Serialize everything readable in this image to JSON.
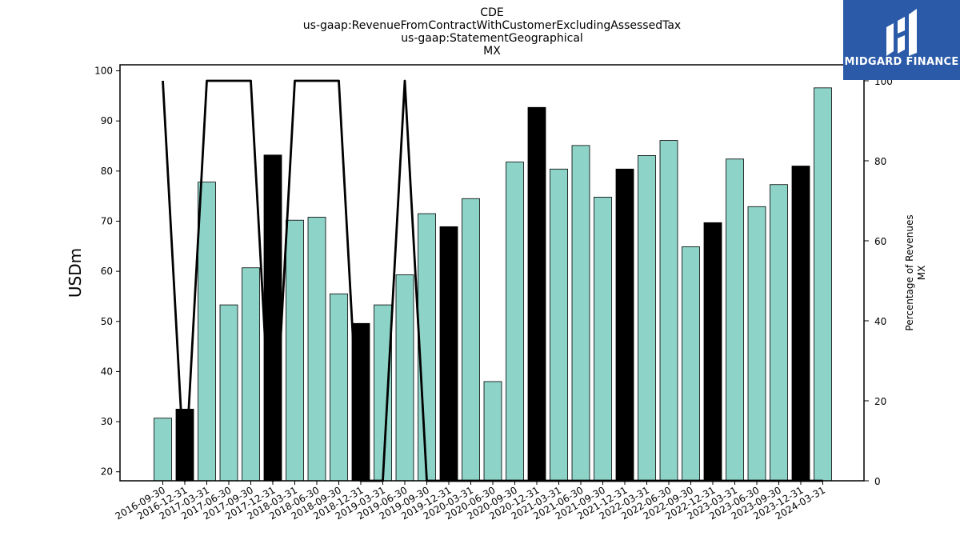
{
  "chart_data": {
    "type": "bar",
    "title_lines": [
      "CDE",
      "us-gaap:RevenueFromContractWithCustomerExcludingAssessedTax",
      "us-gaap:StatementGeographical",
      "MX"
    ],
    "ylabel": "USDm",
    "y2label_lines": [
      "Percentage of Revenues",
      "MX"
    ],
    "ylim": [
      18.2,
      101.2
    ],
    "y2lim": [
      0,
      104
    ],
    "yticks": [
      20,
      30,
      40,
      50,
      60,
      70,
      80,
      90,
      100
    ],
    "y2ticks": [
      0,
      20,
      40,
      60,
      80,
      100
    ],
    "categories": [
      "2016-09-30",
      "2016-12-31",
      "2017-03-31",
      "2017-06-30",
      "2017-09-30",
      "2017-12-31",
      "2018-03-31",
      "2018-06-30",
      "2018-09-30",
      "2018-12-31",
      "2019-03-31",
      "2019-06-30",
      "2019-09-30",
      "2019-12-31",
      "2020-03-31",
      "2020-06-30",
      "2020-09-30",
      "2020-12-31",
      "2021-03-31",
      "2021-06-30",
      "2021-09-30",
      "2021-12-31",
      "2022-03-31",
      "2022-06-30",
      "2022-09-30",
      "2022-12-31",
      "2023-03-31",
      "2023-06-30",
      "2023-09-30",
      "2023-12-31",
      "2024-03-31"
    ],
    "series": [
      {
        "type": "bar",
        "values": [
          30.7,
          32.5,
          77.8,
          53.3,
          60.7,
          83.2,
          70.2,
          70.8,
          55.5,
          49.6,
          53.3,
          59.3,
          71.5,
          68.9,
          74.5,
          38.0,
          81.8,
          92.7,
          80.4,
          85.1,
          74.8,
          80.4,
          83.1,
          86.1,
          64.9,
          69.7,
          82.4,
          72.9,
          77.3,
          81.0,
          96.6
        ],
        "colors_by_index": [
          "#8dd3c7",
          "#000000",
          "#8dd3c7",
          "#8dd3c7",
          "#8dd3c7",
          "#000000",
          "#8dd3c7",
          "#8dd3c7",
          "#8dd3c7",
          "#000000",
          "#8dd3c7",
          "#8dd3c7",
          "#8dd3c7",
          "#000000",
          "#8dd3c7",
          "#8dd3c7",
          "#8dd3c7",
          "#000000",
          "#8dd3c7",
          "#8dd3c7",
          "#8dd3c7",
          "#000000",
          "#8dd3c7",
          "#8dd3c7",
          "#8dd3c7",
          "#000000",
          "#8dd3c7",
          "#8dd3c7",
          "#8dd3c7",
          "#000000",
          "#8dd3c7"
        ]
      },
      {
        "type": "line",
        "axis": "right",
        "color": "#000000",
        "values": [
          100,
          0,
          100,
          100,
          100,
          0,
          100,
          100,
          100,
          0,
          0,
          100,
          0,
          0,
          0,
          0,
          0,
          0,
          0,
          0,
          0,
          0,
          0,
          0,
          0,
          0,
          0,
          0,
          0,
          0,
          0
        ]
      }
    ],
    "grid": false,
    "colors": {
      "bar_primary": "#8dd3c7",
      "bar_year_end": "#000000",
      "line": "#000000"
    }
  },
  "logo": {
    "text": "MIDGARD FINANCE",
    "background": "#2a5aa8",
    "icon": "midgard-logo-icon"
  }
}
